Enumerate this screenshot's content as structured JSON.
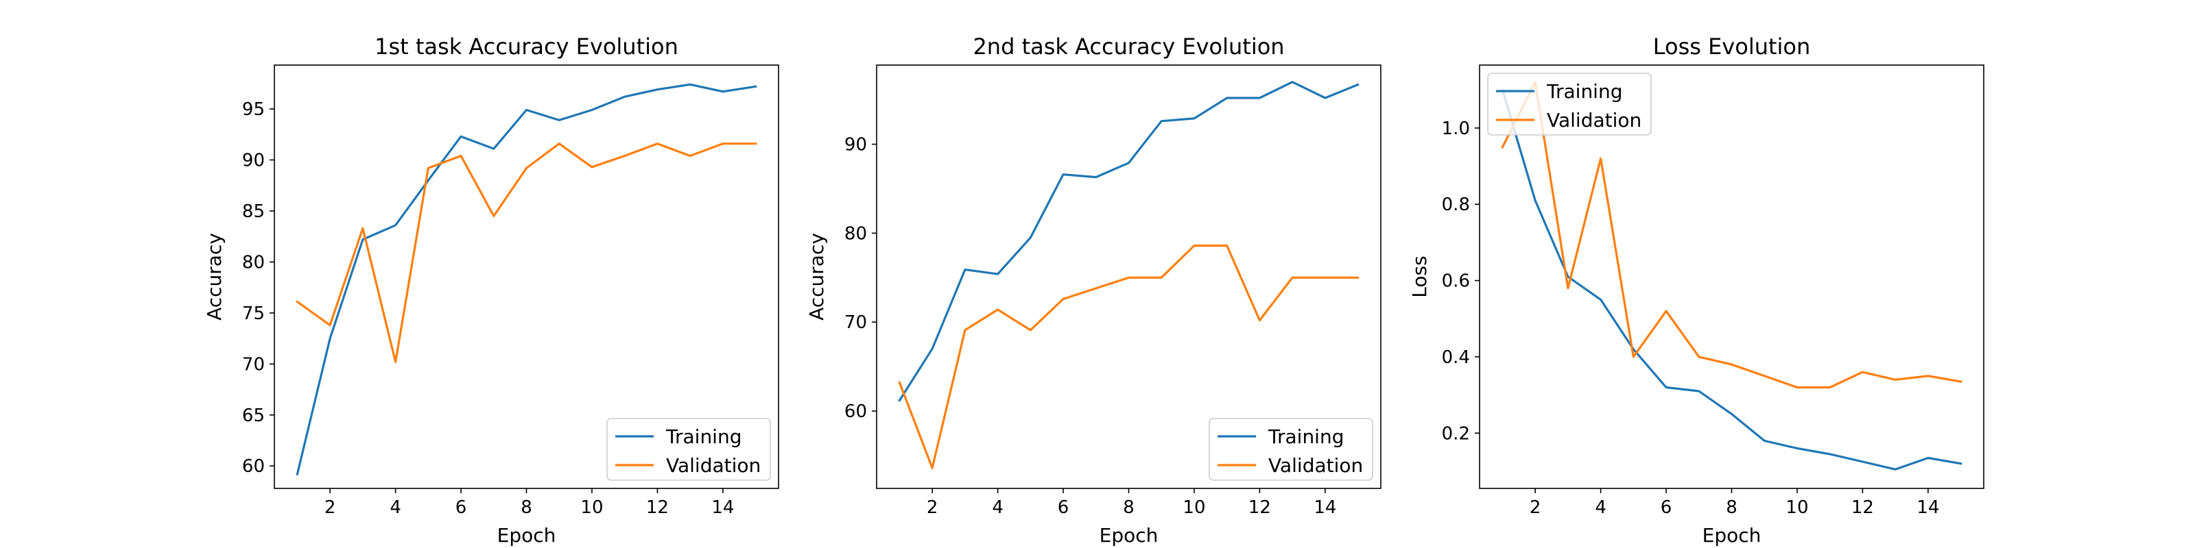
{
  "chart_data": [
    {
      "type": "line",
      "title": "1st task Accuracy Evolution",
      "xlabel": "Epoch",
      "ylabel": "Accuracy",
      "xlim": [
        0.3,
        15.7
      ],
      "ylim": [
        57.8,
        99.3
      ],
      "xticks": [
        2,
        4,
        6,
        8,
        10,
        12,
        14
      ],
      "yticks": [
        60,
        65,
        70,
        75,
        80,
        85,
        90,
        95
      ],
      "legend_loc": "lower-right",
      "x": [
        1,
        2,
        3,
        4,
        5,
        6,
        7,
        8,
        9,
        10,
        11,
        12,
        13,
        14,
        15
      ],
      "series": [
        {
          "name": "Training",
          "color": "#1f77b4",
          "values": [
            59.2,
            72.5,
            82.2,
            83.6,
            88.0,
            92.3,
            91.1,
            94.9,
            93.9,
            94.9,
            96.2,
            96.9,
            97.4,
            96.7,
            97.2
          ]
        },
        {
          "name": "Validation",
          "color": "#ff7f0e",
          "values": [
            76.1,
            73.8,
            83.3,
            70.2,
            89.2,
            90.4,
            84.5,
            89.2,
            91.6,
            89.3,
            90.4,
            91.6,
            90.4,
            91.6,
            91.6
          ]
        }
      ]
    },
    {
      "type": "line",
      "title": "2nd task Accuracy Evolution",
      "xlabel": "Epoch",
      "ylabel": "Accuracy",
      "xlim": [
        0.3,
        15.7
      ],
      "ylim": [
        51.3,
        98.9
      ],
      "xticks": [
        2,
        4,
        6,
        8,
        10,
        12,
        14
      ],
      "yticks": [
        60,
        70,
        80,
        90
      ],
      "legend_loc": "lower-right",
      "x": [
        1,
        2,
        3,
        4,
        5,
        6,
        7,
        8,
        9,
        10,
        11,
        12,
        13,
        14,
        15
      ],
      "series": [
        {
          "name": "Training",
          "color": "#1f77b4",
          "values": [
            61.2,
            67.0,
            75.9,
            75.4,
            79.5,
            86.6,
            86.3,
            87.9,
            92.6,
            92.9,
            95.2,
            95.2,
            97.0,
            95.2,
            96.7
          ]
        },
        {
          "name": "Validation",
          "color": "#ff7f0e",
          "values": [
            63.2,
            53.6,
            69.1,
            71.4,
            69.1,
            72.6,
            73.8,
            75.0,
            75.0,
            78.6,
            78.6,
            70.2,
            75.0,
            75.0,
            75.0
          ]
        }
      ]
    },
    {
      "type": "line",
      "title": "Loss Evolution",
      "xlabel": "Epoch",
      "ylabel": "Loss",
      "xlim": [
        0.3,
        15.7
      ],
      "ylim": [
        0.055,
        1.165
      ],
      "xticks": [
        2,
        4,
        6,
        8,
        10,
        12,
        14
      ],
      "yticks": [
        0.2,
        0.4,
        0.6,
        0.8,
        1.0
      ],
      "ytick_labels": [
        "0.2",
        "0.4",
        "0.6",
        "0.8",
        "1.0"
      ],
      "legend_loc": "upper-left",
      "x": [
        1,
        2,
        3,
        4,
        5,
        6,
        7,
        8,
        9,
        10,
        11,
        12,
        13,
        14,
        15
      ],
      "series": [
        {
          "name": "Training",
          "color": "#1f77b4",
          "values": [
            1.1,
            0.81,
            0.61,
            0.55,
            0.42,
            0.32,
            0.31,
            0.25,
            0.18,
            0.16,
            0.145,
            0.125,
            0.105,
            0.135,
            0.12
          ]
        },
        {
          "name": "Validation",
          "color": "#ff7f0e",
          "values": [
            0.95,
            1.12,
            0.58,
            0.92,
            0.4,
            0.52,
            0.4,
            0.38,
            0.35,
            0.32,
            0.32,
            0.36,
            0.34,
            0.35,
            0.335
          ]
        }
      ]
    }
  ]
}
